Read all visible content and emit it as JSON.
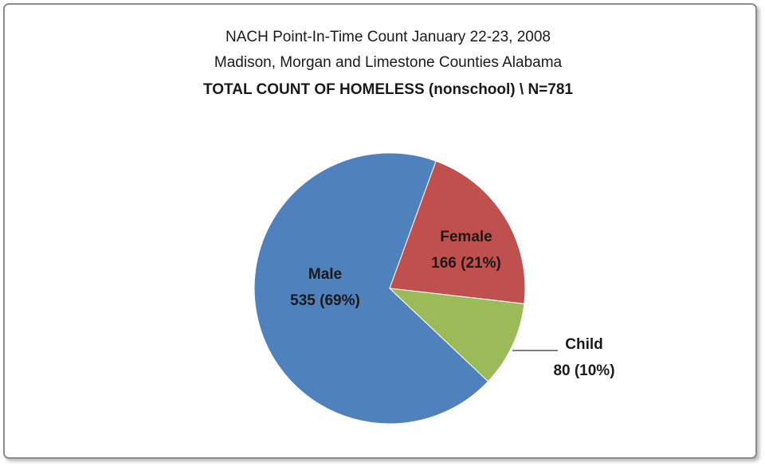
{
  "chart_data": {
    "type": "pie",
    "title": [
      "NACH Point-In-Time  Count January 22-23, 2008",
      "Madison, Morgan and Limestone Counties Alabama",
      "TOTAL COUNT OF HOMELESS  (nonschool) \\ N=781"
    ],
    "categories": [
      "Male",
      "Female",
      "Child"
    ],
    "values": [
      535,
      166,
      80
    ],
    "value_labels": [
      "535 (69%)",
      "166 (21%)",
      "80 (10%)"
    ],
    "colors": [
      "#4f81bd",
      "#c0504d",
      "#9bbb59"
    ]
  }
}
